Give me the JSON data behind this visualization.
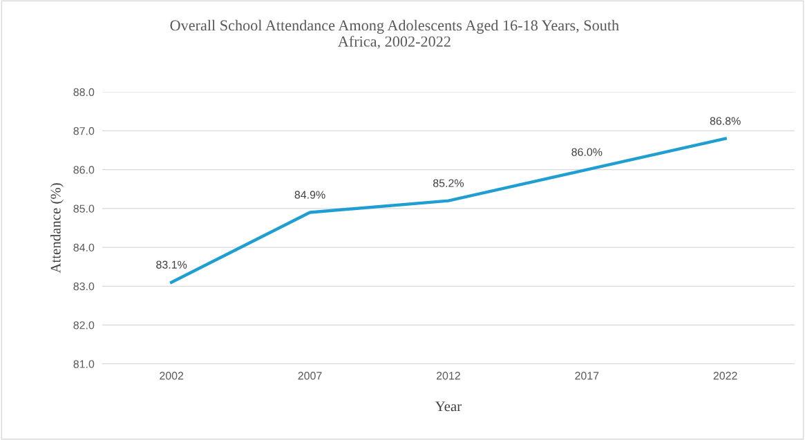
{
  "chart_data": {
    "type": "line",
    "title": "Overall School Attendance Among Adolescents Aged 16-18 Years, South\nAfrica, 2002-2022",
    "xlabel": "Year",
    "ylabel": "Attendance (%)",
    "categories": [
      "2002",
      "2007",
      "2012",
      "2017",
      "2022"
    ],
    "series": [
      {
        "color": "#1f9ed1",
        "values": [
          83.1,
          84.9,
          85.2,
          86.0,
          86.8
        ],
        "value_labels": [
          "83.1%",
          "84.9%",
          "85.2%",
          "86.0%",
          "86.8%"
        ]
      }
    ],
    "ylim": [
      81,
      88
    ],
    "yticks": [
      {
        "value": 81,
        "label": "81.0"
      },
      {
        "value": 82,
        "label": "82.0"
      },
      {
        "value": 83,
        "label": "83.0"
      },
      {
        "value": 84,
        "label": "84.0"
      },
      {
        "value": 85,
        "label": "85.0"
      },
      {
        "value": 86,
        "label": "86.0"
      },
      {
        "value": 87,
        "label": "87.0"
      },
      {
        "value": 88,
        "label": "88.0"
      }
    ],
    "grid": "y",
    "legend": false,
    "marker": "none",
    "line_style": "solid"
  }
}
